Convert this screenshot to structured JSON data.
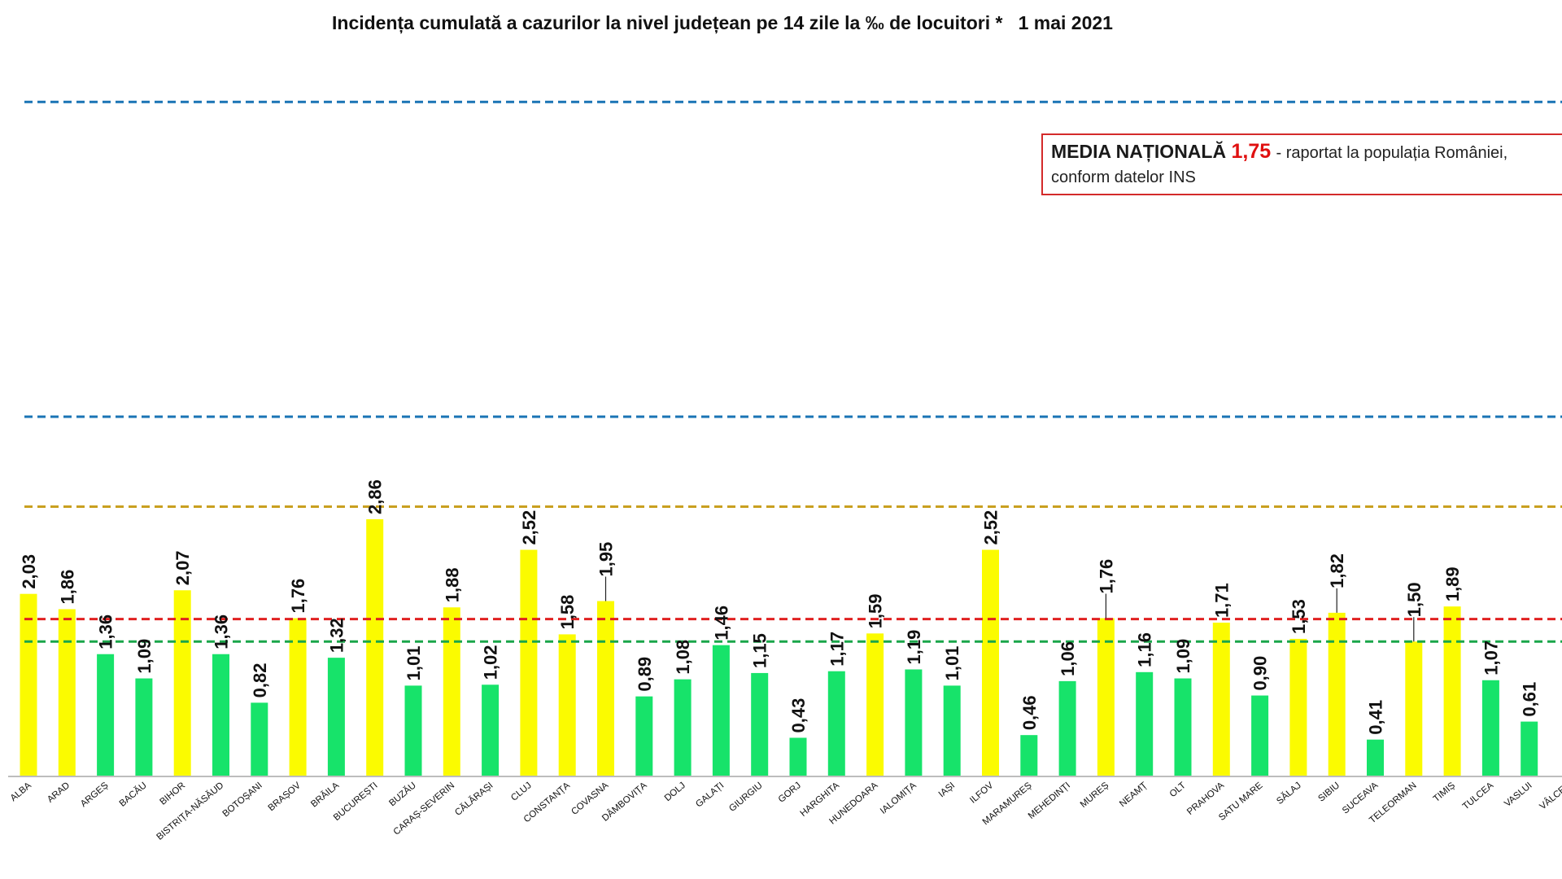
{
  "title": "Incidența cumulată a cazurilor la nivel județean pe 14 zile la ‰ de locuitori *   1 mai 2021",
  "national_box": {
    "label": "MEDIA NAȚIONALĂ",
    "value": "1,75",
    "suffix": " - raportat la populația României,",
    "line2": "conform datelor INS"
  },
  "chart_data": {
    "type": "bar",
    "title": "Incidența cumulată a cazurilor la nivel județean pe 14 zile la ‰ de locuitori *   1 mai 2021",
    "xlabel": "",
    "ylabel": "",
    "categories": [
      "ALBA",
      "ARAD",
      "ARGEȘ",
      "BACĂU",
      "BIHOR",
      "BISTRIȚA-NĂSĂUD",
      "BOTOȘANI",
      "BRAȘOV",
      "BRĂILA",
      "BUCUREȘTI",
      "BUZĂU",
      "CARAȘ-SEVERIN",
      "CĂLĂRAȘI",
      "CLUJ",
      "CONSTANȚA",
      "COVASNA",
      "DÂMBOVIȚA",
      "DOLJ",
      "GALAȚI",
      "GIURGIU",
      "GORJ",
      "HARGHITA",
      "HUNEDOARA",
      "IALOMIȚA",
      "IAȘI",
      "ILFOV",
      "MARAMUREȘ",
      "MEHEDINȚI",
      "MUREȘ",
      "NEAMȚ",
      "OLT",
      "PRAHOVA",
      "SATU MARE",
      "SĂLAJ",
      "SIBIU",
      "SUCEAVA",
      "TELEORMAN",
      "TIMIȘ",
      "TULCEA",
      "VASLUI",
      "VÂLCEA"
    ],
    "values": [
      2.03,
      1.86,
      1.36,
      1.09,
      2.07,
      1.36,
      0.82,
      1.76,
      1.32,
      2.86,
      1.01,
      1.88,
      1.02,
      2.52,
      1.58,
      1.95,
      0.89,
      1.08,
      1.46,
      1.15,
      0.43,
      1.17,
      1.59,
      1.19,
      1.01,
      2.52,
      0.46,
      1.06,
      1.76,
      1.16,
      1.09,
      1.71,
      0.9,
      1.53,
      1.82,
      0.41,
      1.5,
      1.89,
      1.07,
      0.61,
      null
    ],
    "labels": [
      "2,03",
      "1,86",
      "1,36",
      "1,09",
      "2,07",
      "1,36",
      "0,82",
      "1,76",
      "1,32",
      "2,86",
      "1,01",
      "1,88",
      "1,02",
      "2,52",
      "1,58",
      "1,95",
      "0,89",
      "1,08",
      "1,46",
      "1,15",
      "0,43",
      "1,17",
      "1,59",
      "1,19",
      "1,01",
      "2,52",
      "0,46",
      "1,06",
      "1,76",
      "1,16",
      "1,09",
      "1,71",
      "0,90",
      "1,53",
      "1,82",
      "0,41",
      "1,50",
      "1,89",
      "1,07",
      "0,61",
      ""
    ],
    "colors": {
      "above_threshold": "#fbfb00",
      "below_threshold": "#17e36a",
      "axis": "#bdbdbd",
      "label": "#111111"
    },
    "color_threshold": 1.5,
    "leader_line_indices": [
      15,
      28,
      34,
      36
    ],
    "reference_lines": [
      {
        "value": 1.5,
        "color": "#1aa64a"
      },
      {
        "value": 1.75,
        "color": "#e02020"
      },
      {
        "value": 3.0,
        "color": "#c9a020"
      },
      {
        "value": 4.0,
        "color": "#1a74b5"
      },
      {
        "value": 7.5,
        "color": "#1a74b5"
      }
    ],
    "ylim": [
      0,
      7.5
    ],
    "grid": false
  }
}
